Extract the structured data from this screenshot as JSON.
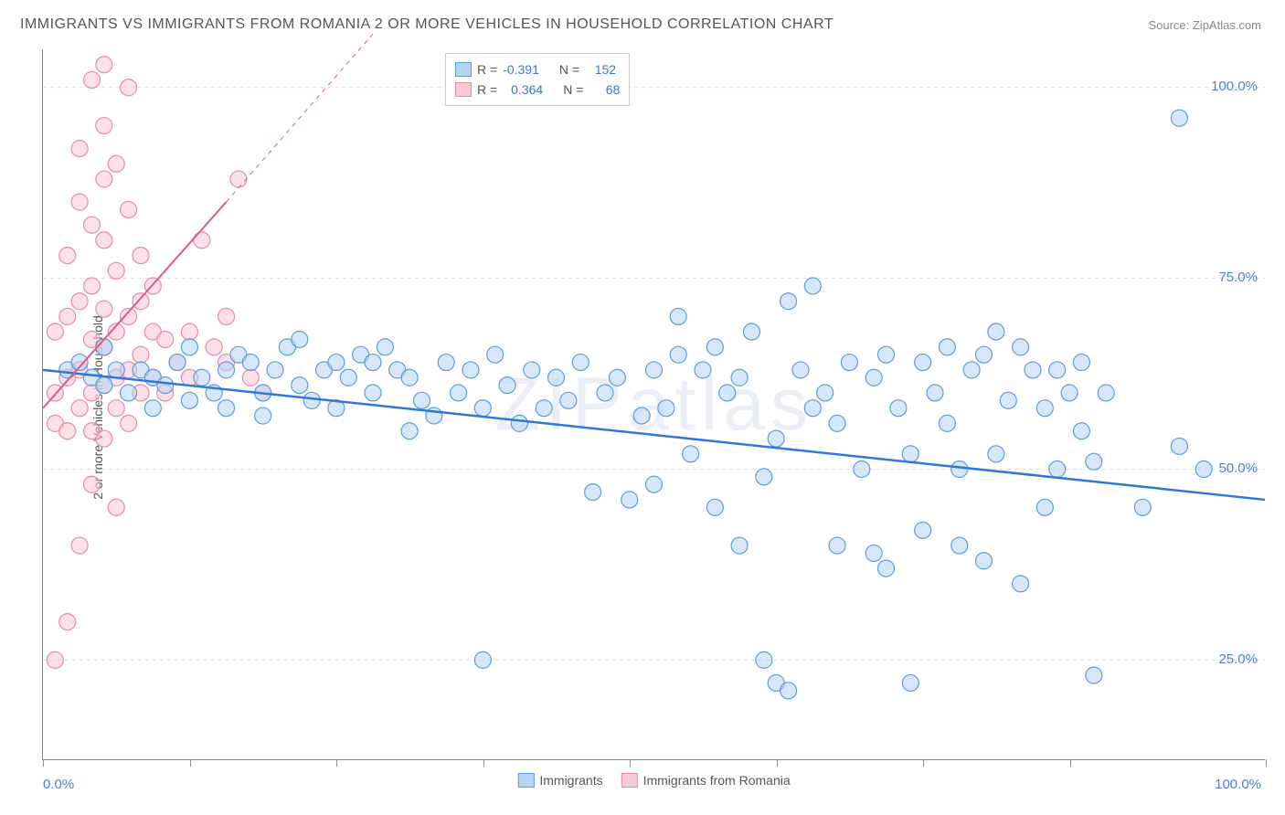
{
  "title": "IMMIGRANTS VS IMMIGRANTS FROM ROMANIA 2 OR MORE VEHICLES IN HOUSEHOLD CORRELATION CHART",
  "source_label": "Source: ",
  "source_value": "ZipAtlas.com",
  "ylabel": "2 or more Vehicles in Household",
  "watermark": "ZIPatlas",
  "chart": {
    "type": "scatter",
    "xlim": [
      0,
      100
    ],
    "ylim": [
      12,
      105
    ],
    "x_ticks": [
      0,
      12,
      24,
      36,
      48,
      60,
      72,
      84,
      100
    ],
    "x_tick_labels_shown": {
      "0": "0.0%",
      "100": "100.0%"
    },
    "y_grid": [
      25,
      50,
      75,
      100
    ],
    "y_tick_labels": {
      "25": "25.0%",
      "50": "50.0%",
      "75": "75.0%",
      "100": "100.0%"
    },
    "background_color": "#ffffff",
    "grid_color": "#dddddd",
    "axis_color": "#888888",
    "tick_label_color": "#4a7fd6",
    "marker_radius": 9,
    "marker_opacity": 0.55,
    "series": [
      {
        "name": "Immigrants",
        "color_fill": "#b6d4f5",
        "color_stroke": "#5a9ce0",
        "R": "-0.391",
        "N": "152",
        "trend": {
          "x1": 0,
          "y1": 63,
          "x2": 100,
          "y2": 46,
          "stroke": "#2f78d8",
          "width": 2.5
        },
        "points": [
          [
            2,
            63
          ],
          [
            3,
            64
          ],
          [
            4,
            62
          ],
          [
            5,
            61
          ],
          [
            5,
            66
          ],
          [
            6,
            63
          ],
          [
            7,
            60
          ],
          [
            8,
            63
          ],
          [
            9,
            62
          ],
          [
            9,
            58
          ],
          [
            10,
            61
          ],
          [
            11,
            64
          ],
          [
            12,
            59
          ],
          [
            12,
            66
          ],
          [
            13,
            62
          ],
          [
            14,
            60
          ],
          [
            15,
            63
          ],
          [
            15,
            58
          ],
          [
            16,
            65
          ],
          [
            17,
            64
          ],
          [
            18,
            60
          ],
          [
            18,
            57
          ],
          [
            19,
            63
          ],
          [
            20,
            66
          ],
          [
            21,
            67
          ],
          [
            21,
            61
          ],
          [
            22,
            59
          ],
          [
            23,
            63
          ],
          [
            24,
            64
          ],
          [
            24,
            58
          ],
          [
            25,
            62
          ],
          [
            26,
            65
          ],
          [
            27,
            64
          ],
          [
            27,
            60
          ],
          [
            28,
            66
          ],
          [
            29,
            63
          ],
          [
            30,
            62
          ],
          [
            30,
            55
          ],
          [
            31,
            59
          ],
          [
            32,
            57
          ],
          [
            33,
            64
          ],
          [
            34,
            60
          ],
          [
            35,
            63
          ],
          [
            36,
            58
          ],
          [
            36,
            25
          ],
          [
            37,
            65
          ],
          [
            38,
            61
          ],
          [
            39,
            56
          ],
          [
            40,
            63
          ],
          [
            41,
            58
          ],
          [
            42,
            62
          ],
          [
            43,
            59
          ],
          [
            44,
            64
          ],
          [
            45,
            47
          ],
          [
            46,
            60
          ],
          [
            47,
            62
          ],
          [
            48,
            46
          ],
          [
            49,
            57
          ],
          [
            50,
            63
          ],
          [
            50,
            48
          ],
          [
            51,
            58
          ],
          [
            52,
            70
          ],
          [
            52,
            65
          ],
          [
            53,
            52
          ],
          [
            54,
            63
          ],
          [
            55,
            45
          ],
          [
            55,
            66
          ],
          [
            56,
            60
          ],
          [
            57,
            62
          ],
          [
            57,
            40
          ],
          [
            58,
            68
          ],
          [
            59,
            49
          ],
          [
            59,
            25
          ],
          [
            60,
            54
          ],
          [
            60,
            22
          ],
          [
            61,
            72
          ],
          [
            61,
            21
          ],
          [
            62,
            63
          ],
          [
            63,
            58
          ],
          [
            63,
            74
          ],
          [
            64,
            60
          ],
          [
            65,
            40
          ],
          [
            65,
            56
          ],
          [
            66,
            64
          ],
          [
            67,
            50
          ],
          [
            68,
            62
          ],
          [
            68,
            39
          ],
          [
            69,
            65
          ],
          [
            69,
            37
          ],
          [
            70,
            58
          ],
          [
            71,
            52
          ],
          [
            71,
            22
          ],
          [
            72,
            64
          ],
          [
            72,
            42
          ],
          [
            73,
            60
          ],
          [
            74,
            56
          ],
          [
            74,
            66
          ],
          [
            75,
            40
          ],
          [
            75,
            50
          ],
          [
            76,
            63
          ],
          [
            77,
            65
          ],
          [
            77,
            38
          ],
          [
            78,
            68
          ],
          [
            78,
            52
          ],
          [
            79,
            59
          ],
          [
            80,
            66
          ],
          [
            80,
            35
          ],
          [
            81,
            63
          ],
          [
            82,
            45
          ],
          [
            82,
            58
          ],
          [
            83,
            50
          ],
          [
            83,
            63
          ],
          [
            84,
            60
          ],
          [
            85,
            64
          ],
          [
            85,
            55
          ],
          [
            86,
            51
          ],
          [
            86,
            23
          ],
          [
            87,
            60
          ],
          [
            90,
            45
          ],
          [
            93,
            96
          ],
          [
            93,
            53
          ],
          [
            95,
            50
          ]
        ]
      },
      {
        "name": "Immigrants from Romania",
        "color_fill": "#f7c9d4",
        "color_stroke": "#e88ba5",
        "R": "0.364",
        "N": "68",
        "trend": {
          "x1": 0,
          "y1": 58,
          "x2": 15,
          "y2": 85,
          "dash_to_x": 27,
          "dash_to_y": 107,
          "stroke": "#e05a87",
          "width": 2
        },
        "points": [
          [
            1,
            25
          ],
          [
            1,
            56
          ],
          [
            1,
            60
          ],
          [
            1,
            68
          ],
          [
            2,
            30
          ],
          [
            2,
            55
          ],
          [
            2,
            62
          ],
          [
            2,
            70
          ],
          [
            2,
            78
          ],
          [
            3,
            40
          ],
          [
            3,
            58
          ],
          [
            3,
            63
          ],
          [
            3,
            72
          ],
          [
            3,
            85
          ],
          [
            3,
            92
          ],
          [
            4,
            48
          ],
          [
            4,
            55
          ],
          [
            4,
            60
          ],
          [
            4,
            67
          ],
          [
            4,
            74
          ],
          [
            4,
            82
          ],
          [
            4,
            101
          ],
          [
            5,
            54
          ],
          [
            5,
            61
          ],
          [
            5,
            66
          ],
          [
            5,
            71
          ],
          [
            5,
            80
          ],
          [
            5,
            88
          ],
          [
            5,
            95
          ],
          [
            5,
            103
          ],
          [
            6,
            45
          ],
          [
            6,
            58
          ],
          [
            6,
            62
          ],
          [
            6,
            68
          ],
          [
            6,
            76
          ],
          [
            6,
            90
          ],
          [
            7,
            56
          ],
          [
            7,
            63
          ],
          [
            7,
            70
          ],
          [
            7,
            84
          ],
          [
            7,
            100
          ],
          [
            8,
            60
          ],
          [
            8,
            65
          ],
          [
            8,
            72
          ],
          [
            8,
            78
          ],
          [
            9,
            62
          ],
          [
            9,
            68
          ],
          [
            9,
            74
          ],
          [
            10,
            60
          ],
          [
            10,
            67
          ],
          [
            11,
            64
          ],
          [
            12,
            62
          ],
          [
            12,
            68
          ],
          [
            13,
            80
          ],
          [
            14,
            66
          ],
          [
            15,
            64
          ],
          [
            15,
            70
          ],
          [
            16,
            88
          ],
          [
            17,
            62
          ],
          [
            18,
            60
          ]
        ]
      }
    ]
  },
  "stats_legend": {
    "rows": [
      {
        "swatch": "blue",
        "R_label": "R =",
        "R": "-0.391",
        "N_label": "N =",
        "N": "152"
      },
      {
        "swatch": "pink",
        "R_label": "R =",
        "R": "0.364",
        "N_label": "N =",
        "68": "68",
        "N_val": "68"
      }
    ]
  },
  "bottom_legend": [
    {
      "swatch": "blue",
      "label": "Immigrants"
    },
    {
      "swatch": "pink",
      "label": "Immigrants from Romania"
    }
  ]
}
